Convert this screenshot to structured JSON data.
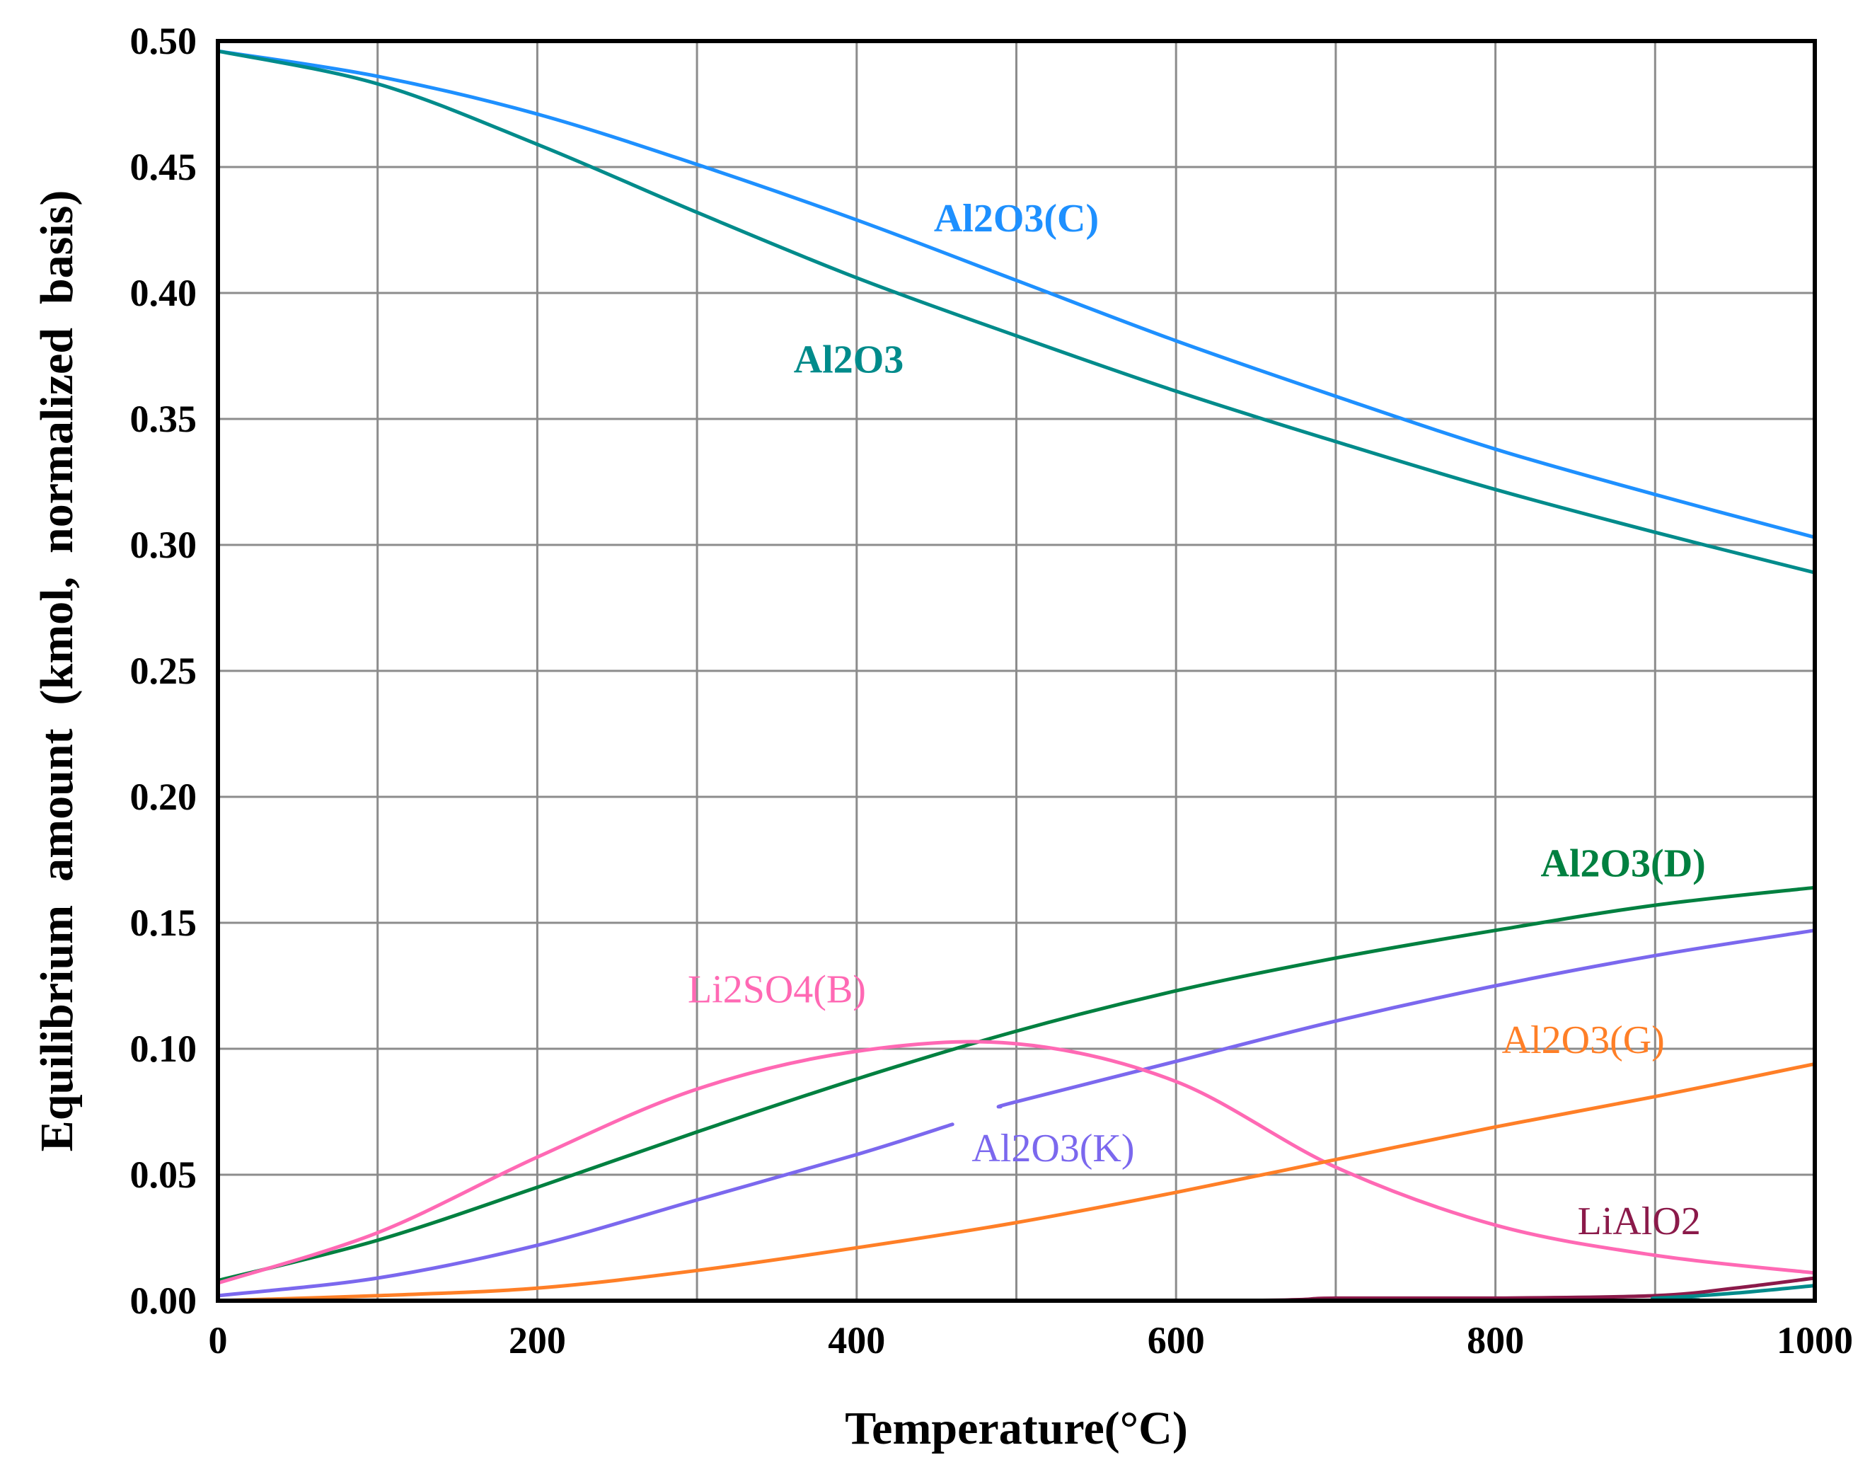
{
  "chart_data": {
    "type": "line",
    "title": "",
    "xlabel": "Temperature(°C)",
    "ylabel": "Equilibrium  amount  (kmol,  normalized  basis)",
    "xlim": [
      0,
      1000
    ],
    "ylim": [
      0,
      0.5
    ],
    "xticks": [
      0,
      100,
      200,
      300,
      400,
      500,
      600,
      700,
      800,
      900,
      1000
    ],
    "xtick_labels": [
      "0",
      "",
      "200",
      "",
      "400",
      "",
      "600",
      "",
      "800",
      "",
      "1000"
    ],
    "yticks": [
      0,
      0.05,
      0.1,
      0.15,
      0.2,
      0.25,
      0.3,
      0.35,
      0.4,
      0.45,
      0.5
    ],
    "ytick_labels": [
      "0.00",
      "0.05",
      "0.10",
      "0.15",
      "0.20",
      "0.25",
      "0.30",
      "0.35",
      "0.40",
      "0.45",
      "0.50"
    ],
    "grid": true,
    "series": [
      {
        "name": "Al2O3(C)",
        "label": "Al2O3(C)",
        "color": "#1E90FF",
        "bold": true,
        "label_at": [
          500,
          0.43
        ],
        "x": [
          0,
          100,
          200,
          300,
          400,
          500,
          600,
          700,
          800,
          900,
          1000
        ],
        "y": [
          0.496,
          0.486,
          0.471,
          0.451,
          0.429,
          0.405,
          0.381,
          0.359,
          0.338,
          0.32,
          0.303
        ]
      },
      {
        "name": "Al2O3",
        "label": "Al2O3",
        "color": "#008B8B",
        "bold": true,
        "label_at": [
          395,
          0.374
        ],
        "x": [
          0,
          100,
          200,
          300,
          400,
          500,
          600,
          700,
          800,
          900,
          1000
        ],
        "y": [
          0.496,
          0.483,
          0.459,
          0.432,
          0.406,
          0.383,
          0.361,
          0.341,
          0.322,
          0.305,
          0.289
        ]
      },
      {
        "name": "Al2O3(D)",
        "label": "Al2O3(D)",
        "color": "#008040",
        "bold": true,
        "label_at": [
          880,
          0.174
        ],
        "x": [
          0,
          100,
          200,
          300,
          400,
          500,
          600,
          700,
          800,
          900,
          1000
        ],
        "y": [
          0.008,
          0.024,
          0.045,
          0.067,
          0.088,
          0.107,
          0.123,
          0.136,
          0.147,
          0.157,
          0.164
        ]
      },
      {
        "name": "Al2O3(K)",
        "label": "Al2O3(K)",
        "color": "#7B68EE",
        "bold": false,
        "label_at": [
          523,
          0.061
        ],
        "gap": [
          460,
          490
        ],
        "x": [
          0,
          100,
          200,
          300,
          400,
          460,
          490,
          500,
          600,
          700,
          800,
          900,
          1000
        ],
        "y": [
          0.002,
          0.009,
          0.022,
          0.04,
          0.058,
          0.07,
          0.077,
          0.079,
          0.095,
          0.111,
          0.125,
          0.137,
          0.147
        ]
      },
      {
        "name": "Li2SO4(B)",
        "label": "Li2SO4(B)",
        "color": "#FF69B4",
        "bold": false,
        "label_at": [
          350,
          0.124
        ],
        "x": [
          0,
          100,
          200,
          300,
          400,
          500,
          600,
          700,
          800,
          900,
          1000
        ],
        "y": [
          0.007,
          0.027,
          0.057,
          0.084,
          0.099,
          0.102,
          0.087,
          0.053,
          0.03,
          0.018,
          0.011
        ]
      },
      {
        "name": "Al2O3(G)",
        "label": "Al2O3(G)",
        "color": "#FF7F27",
        "bold": false,
        "label_at": [
          855,
          0.104
        ],
        "x": [
          0,
          100,
          200,
          300,
          400,
          500,
          600,
          700,
          800,
          900,
          1000
        ],
        "y": [
          0.0,
          0.002,
          0.005,
          0.012,
          0.021,
          0.031,
          0.043,
          0.056,
          0.069,
          0.081,
          0.094
        ]
      },
      {
        "name": "LiAlO2",
        "label": "LiAlO2",
        "color": "#8B1A4A",
        "bold": false,
        "label_at": [
          890,
          0.032
        ],
        "x": [
          0,
          600,
          700,
          800,
          900,
          950,
          1000
        ],
        "y": [
          0.0,
          0.0,
          0.001,
          0.001,
          0.002,
          0.005,
          0.009
        ]
      },
      {
        "name": "minor-teal",
        "color": "#008B8B",
        "bold": false,
        "x": [
          0,
          850,
          900,
          950,
          1000
        ],
        "y": [
          0.0,
          0.0,
          0.001,
          0.003,
          0.006
        ]
      }
    ]
  }
}
